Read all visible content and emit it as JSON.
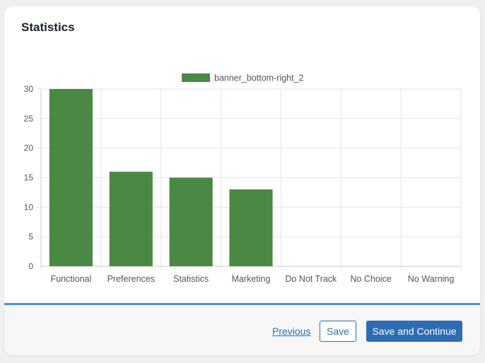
{
  "page": {
    "title": "Statistics"
  },
  "chart_data": {
    "type": "bar",
    "categories": [
      "Functional",
      "Preferences",
      "Statistics",
      "Marketing",
      "Do Not Track",
      "No Choice",
      "No Warning"
    ],
    "series": [
      {
        "name": "banner_bottom-right_2",
        "values": [
          30,
          16,
          15,
          13,
          0,
          0,
          0
        ],
        "color": "#4a8944"
      }
    ],
    "yticks": [
      0,
      5,
      10,
      15,
      20,
      25,
      30
    ],
    "ylim": [
      0,
      30
    ],
    "grid": true,
    "legend_position": "top-center"
  },
  "footer": {
    "previous_label": "Previous",
    "save_label": "Save",
    "save_continue_label": "Save and Continue"
  },
  "colors": {
    "accent": "#2d6cb5",
    "footer_border": "#4a90e2",
    "bar": "#4a8944"
  }
}
